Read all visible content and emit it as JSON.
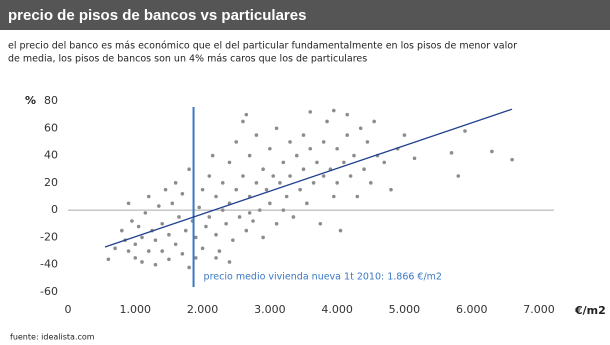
{
  "chart_data": {
    "type": "scatter",
    "title": "precio de pisos de bancos vs particulares",
    "subtitle_lines": [
      "el precio del banco es más económico que el del particular fundamentalmente en los pisos de menor valor",
      "de media, los pisos de bancos son un 4% más caros que los de particulares"
    ],
    "y_axis_label": "%",
    "x_axis_label": "€/m2",
    "source": "fuente: idealista.com",
    "color": "#8c8c8c",
    "x": [
      600,
      700,
      800,
      850,
      900,
      900,
      950,
      1000,
      1000,
      1050,
      1100,
      1100,
      1150,
      1200,
      1200,
      1250,
      1300,
      1300,
      1350,
      1400,
      1400,
      1450,
      1500,
      1500,
      1550,
      1600,
      1600,
      1650,
      1700,
      1700,
      1750,
      1800,
      1800,
      1850,
      1900,
      1900,
      1950,
      2000,
      2000,
      2050,
      2100,
      2100,
      2150,
      2200,
      2200,
      2250,
      2300,
      2300,
      2350,
      2400,
      2400,
      2450,
      2500,
      2500,
      2550,
      2600,
      2600,
      2650,
      2650,
      2700,
      2700,
      2750,
      2800,
      2800,
      2850,
      2900,
      2900,
      2950,
      3000,
      3000,
      3050,
      3100,
      3100,
      3150,
      3200,
      3200,
      3250,
      3300,
      3300,
      3350,
      3400,
      3450,
      3500,
      3500,
      3550,
      3600,
      3650,
      3700,
      3750,
      3800,
      3800,
      3850,
      3900,
      3950,
      4000,
      4000,
      4050,
      4100,
      4150,
      4200,
      4250,
      4300,
      4350,
      4400,
      4450,
      4500,
      4550,
      4600,
      4700,
      4800,
      4900,
      5000,
      5150,
      5700,
      5800,
      5900,
      6300,
      6600,
      3600,
      3950,
      4150,
      2700,
      2400,
      2200
    ],
    "values": [
      -36,
      -28,
      -15,
      -22,
      -30,
      5,
      -8,
      -25,
      -35,
      -12,
      -20,
      -38,
      -2,
      -30,
      10,
      -15,
      -40,
      -22,
      3,
      -10,
      -30,
      15,
      -18,
      -36,
      5,
      -25,
      20,
      -5,
      -32,
      12,
      -15,
      30,
      -42,
      -8,
      -20,
      -35,
      2,
      15,
      -28,
      -12,
      25,
      -5,
      40,
      -18,
      10,
      -30,
      20,
      0,
      -10,
      35,
      5,
      -22,
      50,
      15,
      -5,
      65,
      25,
      70,
      -15,
      10,
      40,
      -8,
      20,
      55,
      0,
      30,
      -20,
      15,
      45,
      5,
      25,
      -10,
      60,
      20,
      35,
      0,
      10,
      50,
      25,
      -5,
      40,
      15,
      30,
      55,
      5,
      45,
      20,
      35,
      -10,
      25,
      50,
      65,
      30,
      10,
      45,
      20,
      -15,
      35,
      55,
      25,
      40,
      10,
      60,
      30,
      50,
      20,
      65,
      40,
      35,
      15,
      45,
      55,
      38,
      42,
      25,
      58,
      43,
      37,
      72,
      73,
      70,
      -2,
      -38,
      -35
    ],
    "trend_line": {
      "x": [
        550,
        6600
      ],
      "y": [
        -27,
        74
      ],
      "color": "#1f3f8f"
    },
    "reference_line": {
      "x": 1866,
      "color": "#3a78c4",
      "label": "precio medio vivienda nueva 1t 2010: 1.866 €/m2"
    },
    "xlim": [
      0,
      7000
    ],
    "xticks": [
      0,
      {
        "value": 1000,
        "label": "1.000"
      },
      {
        "value": 2000,
        "label": "2.000"
      },
      {
        "value": 3000,
        "label": "3.000"
      },
      {
        "value": 4000,
        "label": "4.000"
      },
      {
        "value": 5000,
        "label": "5.000"
      },
      {
        "value": 6000,
        "label": "6.000"
      },
      {
        "value": 7000,
        "label": "7.000"
      }
    ],
    "ylim": [
      -60,
      80
    ],
    "yticks": [
      -60,
      -40,
      -20,
      0,
      20,
      40,
      60,
      80
    ],
    "zero_line": true
  }
}
